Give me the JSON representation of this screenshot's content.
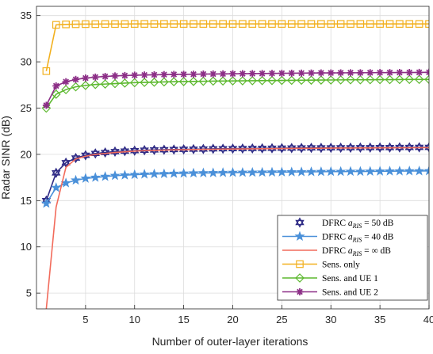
{
  "chart_data": {
    "type": "line",
    "title": "",
    "xlabel": "Number of outer-layer iterations",
    "ylabel": "Radar SINR (dB)",
    "xlim": [
      0,
      40
    ],
    "ylim": [
      3.3,
      36
    ],
    "xticks": [
      5,
      10,
      15,
      20,
      25,
      30,
      35,
      40
    ],
    "yticks": [
      5,
      10,
      15,
      20,
      25,
      30,
      35
    ],
    "grid": true,
    "legend_position": "bottom-right",
    "x": [
      1,
      2,
      3,
      4,
      5,
      6,
      7,
      8,
      9,
      10,
      11,
      12,
      13,
      14,
      15,
      16,
      17,
      18,
      19,
      20,
      21,
      22,
      23,
      24,
      25,
      26,
      27,
      28,
      29,
      30,
      31,
      32,
      33,
      34,
      35,
      36,
      37,
      38,
      39,
      40
    ],
    "series": [
      {
        "name": "DFRC a_RIS = 50 dB",
        "legend_main": "DFRC",
        "legend_sub": "RIS",
        "legend_tail": "= 50 dB",
        "color": "#2e2a85",
        "marker": "hexagram",
        "values": [
          15.0,
          18.0,
          19.1,
          19.6,
          19.9,
          20.1,
          20.2,
          20.3,
          20.35,
          20.4,
          20.45,
          20.48,
          20.5,
          20.52,
          20.54,
          20.56,
          20.58,
          20.6,
          20.61,
          20.62,
          20.63,
          20.64,
          20.65,
          20.66,
          20.67,
          20.68,
          20.69,
          20.7,
          20.7,
          20.71,
          20.72,
          20.72,
          20.73,
          20.73,
          20.74,
          20.74,
          20.75,
          20.75,
          20.76,
          20.76
        ]
      },
      {
        "name": "DFRC a_RIS = 40 dB",
        "legend_main": "DFRC",
        "legend_sub": "RIS",
        "legend_tail": "= 40 dB",
        "color": "#4a90d9",
        "marker": "star",
        "values": [
          14.7,
          16.4,
          16.9,
          17.2,
          17.4,
          17.5,
          17.6,
          17.7,
          17.75,
          17.8,
          17.85,
          17.88,
          17.9,
          17.93,
          17.95,
          17.97,
          17.99,
          18.0,
          18.02,
          18.03,
          18.04,
          18.05,
          18.06,
          18.07,
          18.08,
          18.09,
          18.1,
          18.11,
          18.12,
          18.13,
          18.14,
          18.15,
          18.15,
          18.16,
          18.17,
          18.18,
          18.19,
          18.2,
          18.2,
          18.21
        ]
      },
      {
        "name": "DFRC a_RIS = ∞ dB",
        "legend_main": "DFRC",
        "legend_sub": "RIS",
        "legend_tail": "= ∞ dB",
        "color": "#f26b5b",
        "marker": "none",
        "values": [
          3.3,
          14.3,
          18.6,
          19.5,
          19.8,
          20.0,
          20.1,
          20.2,
          20.28,
          20.35,
          20.4,
          20.43,
          20.46,
          20.49,
          20.5,
          20.52,
          20.54,
          20.55,
          20.57,
          20.58,
          20.59,
          20.6,
          20.61,
          20.62,
          20.63,
          20.64,
          20.65,
          20.65,
          20.66,
          20.67,
          20.68,
          20.68,
          20.69,
          20.69,
          20.7,
          20.7,
          20.71,
          20.71,
          20.72,
          20.72
        ]
      },
      {
        "name": "Sens. only",
        "legend_main": "Sens.  only",
        "legend_sub": "",
        "legend_tail": "",
        "color": "#f2b01e",
        "marker": "square",
        "values": [
          29.0,
          34.0,
          34.05,
          34.07,
          34.08,
          34.08,
          34.09,
          34.09,
          34.09,
          34.1,
          34.1,
          34.1,
          34.1,
          34.1,
          34.1,
          34.1,
          34.1,
          34.1,
          34.1,
          34.1,
          34.1,
          34.1,
          34.1,
          34.1,
          34.1,
          34.1,
          34.1,
          34.1,
          34.1,
          34.1,
          34.1,
          34.1,
          34.1,
          34.1,
          34.1,
          34.1,
          34.1,
          34.1,
          34.1,
          34.1
        ]
      },
      {
        "name": "Sens. and UE 1",
        "legend_main": "Sens.  and UE 1",
        "legend_sub": "",
        "legend_tail": "",
        "color": "#5cb82e",
        "marker": "diamond",
        "values": [
          25.0,
          26.5,
          27.0,
          27.3,
          27.45,
          27.55,
          27.6,
          27.65,
          27.7,
          27.75,
          27.78,
          27.8,
          27.83,
          27.85,
          27.87,
          27.88,
          27.9,
          27.92,
          27.93,
          27.94,
          27.95,
          27.96,
          27.97,
          27.98,
          27.99,
          28.0,
          28.01,
          28.02,
          28.03,
          28.04,
          28.05,
          28.06,
          28.06,
          28.07,
          28.08,
          28.08,
          28.09,
          28.1,
          28.1,
          28.1
        ]
      },
      {
        "name": "Sens. and UE 2",
        "legend_main": "Sens.  and UE 2",
        "legend_sub": "",
        "legend_tail": "",
        "color": "#8c2f87",
        "marker": "asterisk",
        "values": [
          25.3,
          27.4,
          27.85,
          28.1,
          28.25,
          28.35,
          28.42,
          28.48,
          28.52,
          28.56,
          28.58,
          28.6,
          28.62,
          28.64,
          28.65,
          28.66,
          28.68,
          28.69,
          28.7,
          28.71,
          28.72,
          28.73,
          28.74,
          28.75,
          28.76,
          28.77,
          28.78,
          28.79,
          28.8,
          28.8,
          28.81,
          28.82,
          28.82,
          28.83,
          28.84,
          28.84,
          28.85,
          28.85,
          28.86,
          28.87
        ]
      }
    ]
  }
}
